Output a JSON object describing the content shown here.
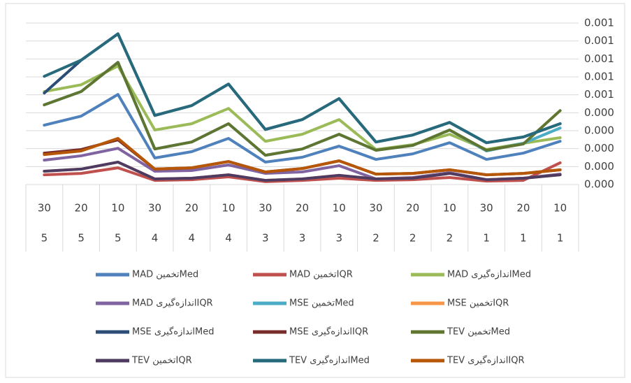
{
  "chart_data": {
    "type": "line",
    "categories": [
      "30",
      "20",
      "10",
      "30",
      "20",
      "10",
      "30",
      "20",
      "10",
      "30",
      "20",
      "10",
      "30",
      "20",
      "10"
    ],
    "category_groups": [
      "5",
      "5",
      "5",
      "4",
      "4",
      "4",
      "3",
      "3",
      "3",
      "2",
      "2",
      "2",
      "1",
      "1",
      "1"
    ],
    "ylim": [
      0,
      0.0009
    ],
    "yticks": [
      {
        "value": 0,
        "label": "0.000"
      },
      {
        "value": 0.0001,
        "label": "0.000"
      },
      {
        "value": 0.0002,
        "label": "0.000"
      },
      {
        "value": 0.0003,
        "label": "0.000"
      },
      {
        "value": 0.0004,
        "label": "0.000"
      },
      {
        "value": 0.0005,
        "label": "0.001"
      },
      {
        "value": 0.0006,
        "label": "0.001"
      },
      {
        "value": 0.0007,
        "label": "0.001"
      },
      {
        "value": 0.0008,
        "label": "0.001"
      },
      {
        "value": 0.0009,
        "label": "0.001"
      }
    ],
    "grid": true,
    "series": [
      {
        "name": "MAD تخمینMed",
        "color": "#4f81bd",
        "values": [
          0.000331,
          0.000381,
          0.000502,
          0.000148,
          0.000183,
          0.000257,
          0.000125,
          0.000152,
          0.000214,
          0.00014,
          0.000171,
          0.000233,
          0.00014,
          0.000175,
          0.000241
        ]
      },
      {
        "name": "MAD تخمینIQR",
        "color": "#c0504d",
        "values": [
          5.4e-05,
          6.2e-05,
          9.3e-05,
          2.3e-05,
          2.7e-05,
          4.3e-05,
          1.6e-05,
          2.3e-05,
          3.5e-05,
          2.3e-05,
          2.7e-05,
          3.9e-05,
          1.9e-05,
          2.3e-05,
          0.000121
        ]
      },
      {
        "name": "MAD اندازه‌گیریMed",
        "color": "#9bbb59",
        "values": [
          0.000518,
          0.000556,
          0.000661,
          0.000304,
          0.000339,
          0.000424,
          0.000241,
          0.00028,
          0.000362,
          0.000195,
          0.000222,
          0.00028,
          0.000195,
          0.00023,
          0.000261
        ]
      },
      {
        "name": "MAD اندازه‌گیریIQR",
        "color": "#8064a2",
        "values": [
          0.000136,
          0.00016,
          0.000202,
          7.4e-05,
          7.8e-05,
          0.000109,
          6.2e-05,
          7e-05,
          0.000105,
          3.1e-05,
          3.9e-05,
          6.6e-05,
          2.7e-05,
          3.5e-05,
          5.8e-05
        ]
      },
      {
        "name": "MSE تخمینMed",
        "color": "#4bacc6",
        "values": [
          0.000444,
          0.000518,
          0.000681,
          0.000198,
          0.000237,
          0.000339,
          0.000163,
          0.000198,
          0.00028,
          0.000191,
          0.000218,
          0.000304,
          0.000187,
          0.00023,
          0.000315
        ]
      },
      {
        "name": "MSE تخمینIQR",
        "color": "#f79646",
        "values": [
          7.4e-05,
          8.6e-05,
          0.000125,
          3.1e-05,
          3.5e-05,
          5.4e-05,
          2.3e-05,
          3.1e-05,
          5.1e-05,
          3.1e-05,
          3.5e-05,
          6.2e-05,
          2.7e-05,
          3.5e-05,
          5.4e-05
        ]
      },
      {
        "name": "MSE اندازه‌گیریMed",
        "color": "#2c4d75",
        "values": [
          0.00051,
          0.000693,
          0.00084,
          0.000385,
          0.00044,
          0.00056,
          0.000307,
          0.000362,
          0.000479,
          0.000237,
          0.000276,
          0.000346,
          0.000233,
          0.000265,
          0.000339
        ]
      },
      {
        "name": "MSE اندازه‌گیریIQR",
        "color": "#772c2a",
        "values": [
          0.000175,
          0.000195,
          0.000249,
          8.6e-05,
          9.3e-05,
          0.000128,
          7e-05,
          8.9e-05,
          0.000132,
          5.8e-05,
          6.2e-05,
          8.2e-05,
          5.4e-05,
          6.2e-05,
          8.2e-05
        ]
      },
      {
        "name": "TEV تخمینMed",
        "color": "#5f7530",
        "values": [
          0.000444,
          0.000518,
          0.000681,
          0.000198,
          0.000237,
          0.000339,
          0.000163,
          0.000198,
          0.00028,
          0.000191,
          0.000218,
          0.000304,
          0.000191,
          0.000226,
          0.000412
        ]
      },
      {
        "name": "TEV تخمینIQR",
        "color": "#4d3b62",
        "values": [
          7.4e-05,
          8.6e-05,
          0.000125,
          3.1e-05,
          3.5e-05,
          5.4e-05,
          2.3e-05,
          3.1e-05,
          5.1e-05,
          3.1e-05,
          3.5e-05,
          6.2e-05,
          2.7e-05,
          3.5e-05,
          5.4e-05
        ]
      },
      {
        "name": "TEV اندازه‌گیریMed",
        "color": "#276a7c",
        "values": [
          0.000603,
          0.000693,
          0.00084,
          0.000385,
          0.00044,
          0.00056,
          0.000307,
          0.000362,
          0.000479,
          0.000237,
          0.000276,
          0.000346,
          0.000233,
          0.000265,
          0.000339
        ]
      },
      {
        "name": "TEV اندازه‌گیریIQR",
        "color": "#b65708",
        "values": [
          0.000167,
          0.000187,
          0.000257,
          8.6e-05,
          9.3e-05,
          0.000128,
          7e-05,
          8.9e-05,
          0.000132,
          5.8e-05,
          6.2e-05,
          8.2e-05,
          5.4e-05,
          6.2e-05,
          8.2e-05
        ]
      }
    ]
  }
}
